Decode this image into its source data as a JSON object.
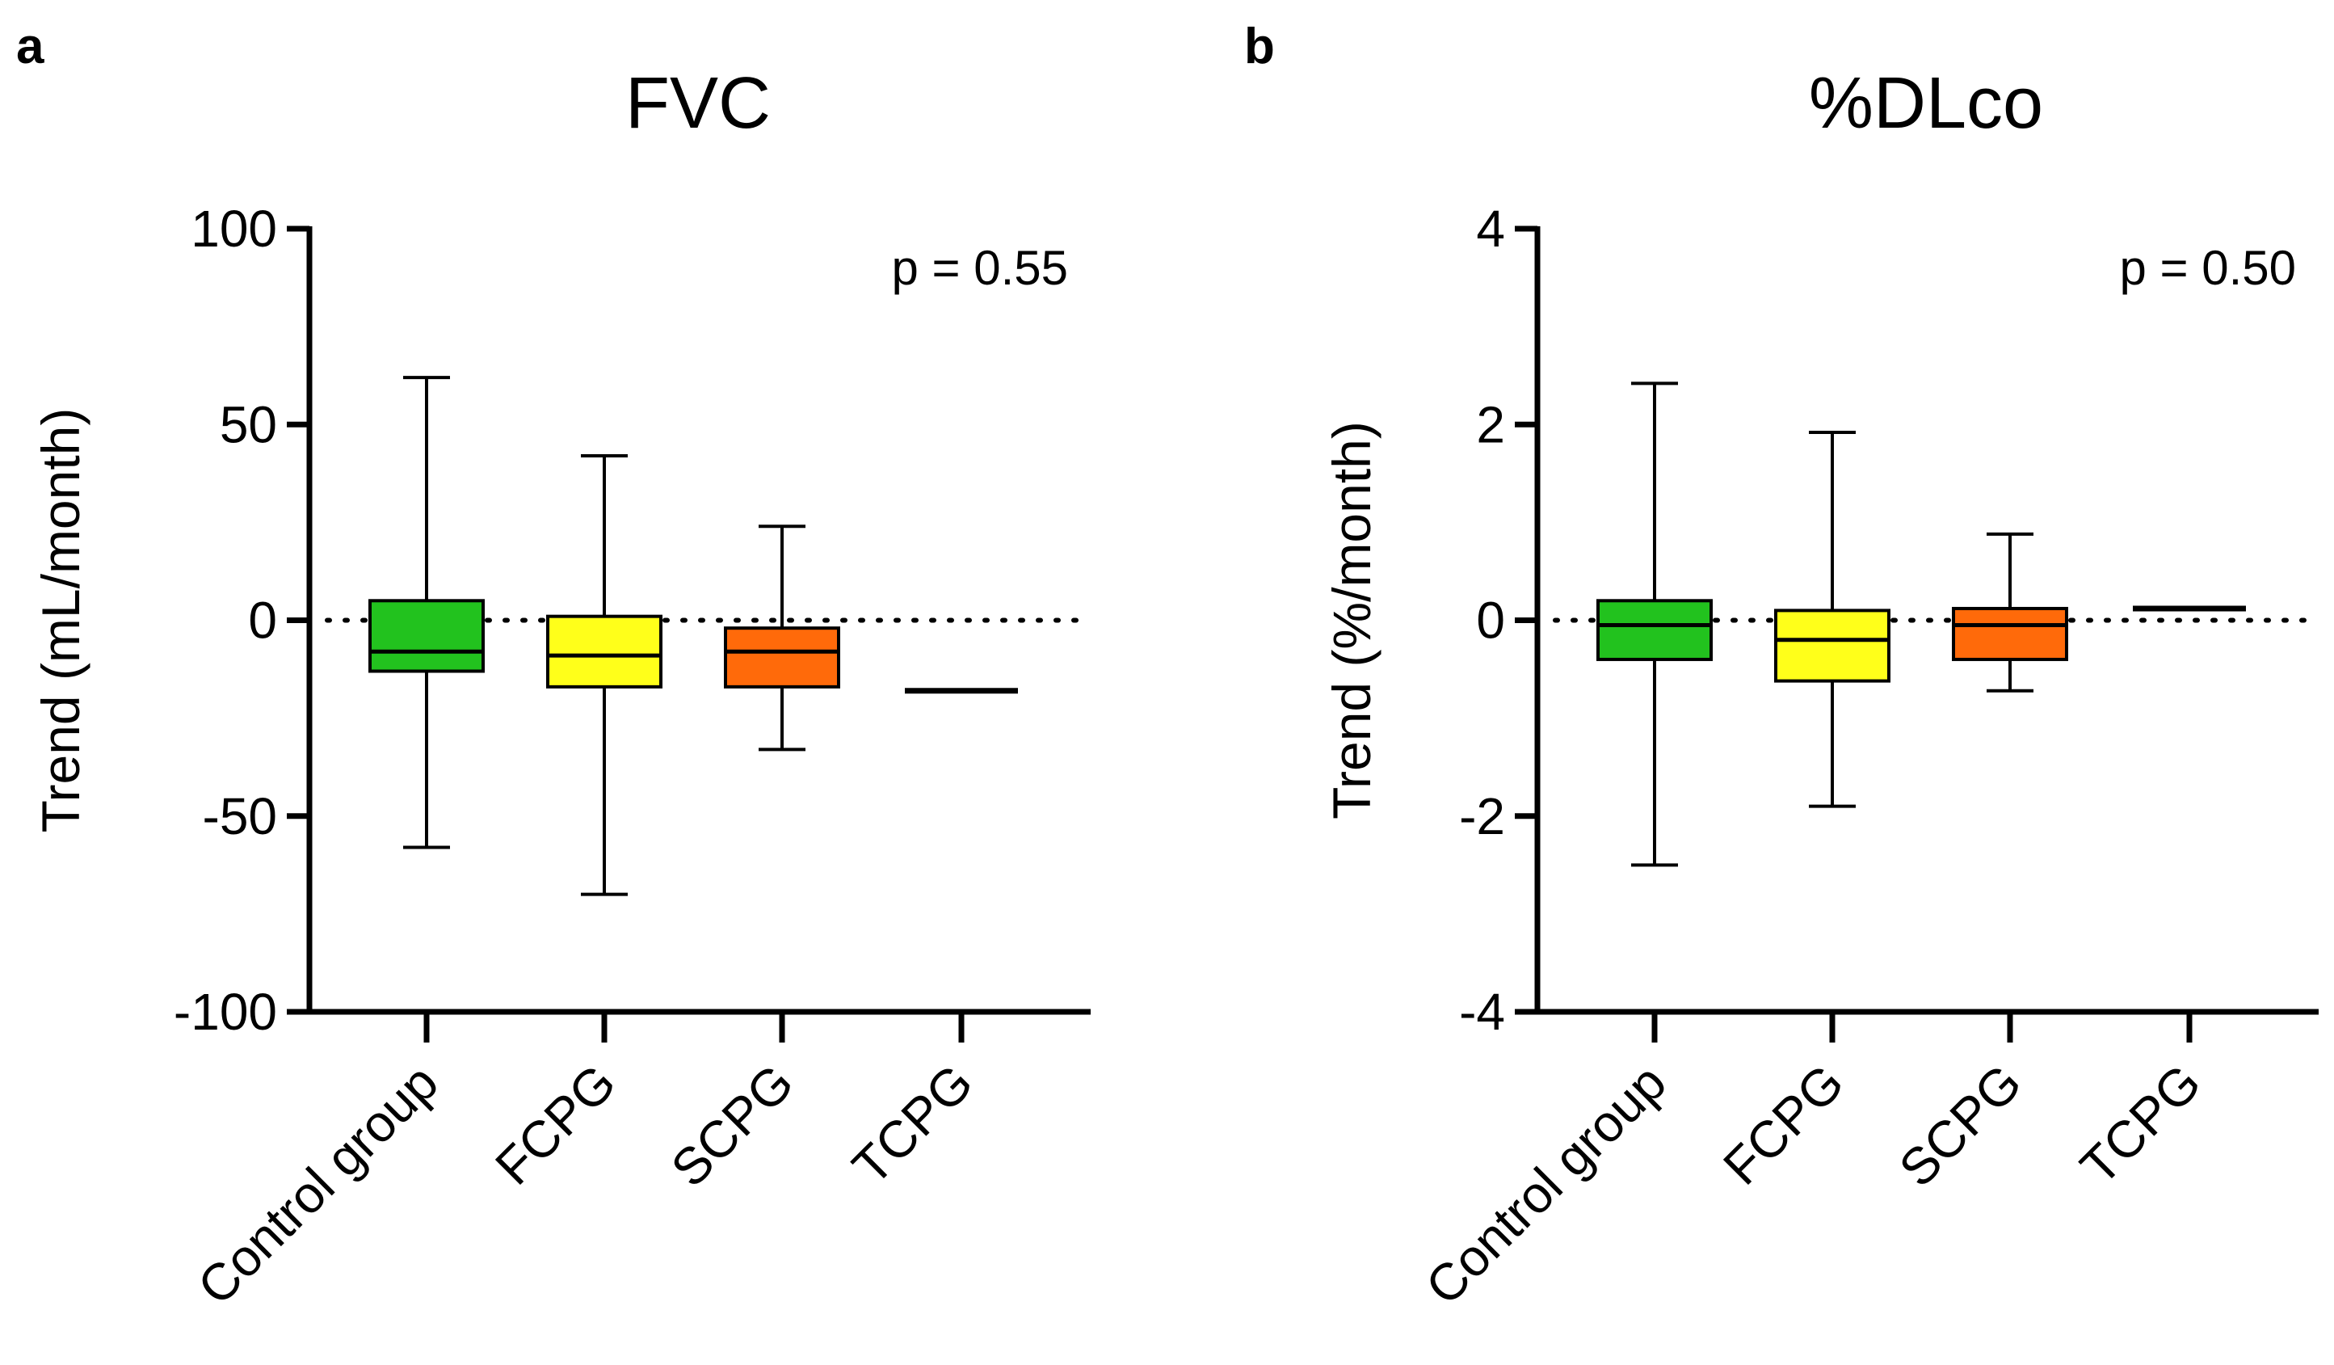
{
  "chart_data": [
    {
      "type": "box",
      "panel_label": "a",
      "title": "FVC",
      "ylabel": "Trend (mL/month)",
      "xlabel": "",
      "ylim": [
        -100,
        100
      ],
      "yticks": [
        -100,
        -50,
        0,
        50,
        100
      ],
      "ytick_labels": [
        "-100",
        "-50",
        "0",
        "50",
        "100"
      ],
      "reference_line": 0,
      "annotation": "p = 0.55",
      "categories": [
        "Control group",
        "FCPG",
        "SCPG",
        "TCPG"
      ],
      "boxes": [
        {
          "min": -58,
          "q1": -13,
          "median": -8,
          "q3": 5,
          "max": 62,
          "color": "#22c21e"
        },
        {
          "min": -70,
          "q1": -17,
          "median": -9,
          "q3": 1,
          "max": 42,
          "color": "#ffff1a"
        },
        {
          "min": -33,
          "q1": -17,
          "median": -8,
          "q3": -2,
          "max": 24,
          "color": "#ff6a0a"
        },
        {
          "min": -18,
          "q1": -18,
          "median": -18,
          "q3": -18,
          "max": -18,
          "color": "#000000"
        }
      ]
    },
    {
      "type": "box",
      "panel_label": "b",
      "title": "%DLco",
      "ylabel": "Trend (%/month)",
      "xlabel": "",
      "ylim": [
        -4,
        4
      ],
      "yticks": [
        -4,
        -2,
        0,
        2,
        4
      ],
      "ytick_labels": [
        "-4",
        "-2",
        "0",
        "2",
        "4"
      ],
      "reference_line": 0,
      "annotation": "p = 0.50",
      "categories": [
        "Control group",
        "FCPG",
        "SCPG",
        "TCPG"
      ],
      "boxes": [
        {
          "min": -2.5,
          "q1": -0.4,
          "median": -0.05,
          "q3": 0.2,
          "max": 2.42,
          "color": "#22c21e"
        },
        {
          "min": -1.9,
          "q1": -0.62,
          "median": -0.2,
          "q3": 0.1,
          "max": 1.92,
          "color": "#ffff1a"
        },
        {
          "min": -0.72,
          "q1": -0.4,
          "median": -0.05,
          "q3": 0.12,
          "max": 0.88,
          "color": "#ff6a0a"
        },
        {
          "min": 0.12,
          "q1": 0.12,
          "median": 0.12,
          "q3": 0.12,
          "max": 0.12,
          "color": "#000000"
        }
      ]
    }
  ]
}
